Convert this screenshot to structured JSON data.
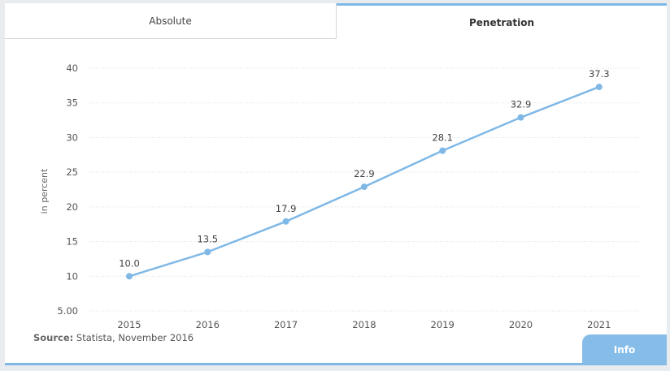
{
  "tabs": {
    "absolute_label": "Absolute",
    "penetration_label": "Penetration"
  },
  "source": {
    "label": "Source:",
    "text": "Statista, November 2016"
  },
  "info_button": {
    "label": "Info"
  },
  "colors": {
    "line": "#7fb8e6",
    "point": "#7fb8e6",
    "grid": "#dddddd",
    "accent": "#86bde8"
  },
  "chart_data": {
    "type": "line",
    "title": "",
    "xlabel": "",
    "ylabel": "in percent",
    "categories": [
      "2015",
      "2016",
      "2017",
      "2018",
      "2019",
      "2020",
      "2021"
    ],
    "series": [
      {
        "values": [
          10.0,
          13.5,
          17.9,
          22.9,
          28.1,
          32.9,
          37.3
        ]
      }
    ],
    "data_labels": [
      "10.0",
      "13.5",
      "17.9",
      "22.9",
      "28.1",
      "32.9",
      "37.3"
    ],
    "y_ticks": [
      5,
      10,
      15,
      20,
      25,
      30,
      35,
      40
    ],
    "y_tick_labels": [
      "5.00",
      "10",
      "15",
      "20",
      "25",
      "30",
      "35",
      "40"
    ],
    "ylim": [
      5,
      40
    ],
    "grid": true,
    "legend": "none"
  }
}
